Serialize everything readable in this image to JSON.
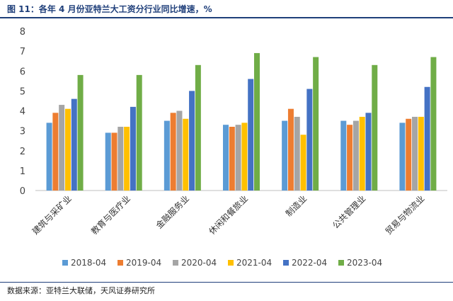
{
  "figure": {
    "title": "图 11：各年 4 月份亚特兰大工资分行业同比增速，%",
    "source": "数据来源：亚特兰大联储，天风证券研究所"
  },
  "chart_data": {
    "type": "bar",
    "title": "",
    "xlabel": "",
    "ylabel": "",
    "ylim": [
      0,
      8
    ],
    "yticks": [
      0,
      1,
      2,
      3,
      4,
      5,
      6,
      7,
      8
    ],
    "grid": false,
    "legend_position": "bottom",
    "categories": [
      "建筑与采矿业",
      "教育与医疗业",
      "金融服务业",
      "休闲和餐旅业",
      "制造业",
      "公共管理业",
      "贸易与物流业"
    ],
    "series": [
      {
        "name": "2018-04",
        "color": "#5b9bd5",
        "values": [
          3.4,
          2.9,
          3.5,
          3.3,
          3.5,
          3.5,
          3.4
        ]
      },
      {
        "name": "2019-04",
        "color": "#ed7d31",
        "values": [
          3.9,
          2.9,
          3.9,
          3.2,
          4.1,
          3.3,
          3.6
        ]
      },
      {
        "name": "2020-04",
        "color": "#a5a5a5",
        "values": [
          4.3,
          3.2,
          4.0,
          3.3,
          3.7,
          3.5,
          3.7
        ]
      },
      {
        "name": "2021-04",
        "color": "#ffc000",
        "values": [
          4.1,
          3.2,
          3.6,
          3.4,
          2.8,
          3.7,
          3.7
        ]
      },
      {
        "name": "2022-04",
        "color": "#4472c4",
        "values": [
          4.6,
          4.2,
          5.0,
          5.6,
          5.1,
          3.9,
          5.2
        ]
      },
      {
        "name": "2023-04",
        "color": "#70ad47",
        "values": [
          5.8,
          5.8,
          6.3,
          6.9,
          6.7,
          6.3,
          6.7
        ]
      }
    ]
  }
}
